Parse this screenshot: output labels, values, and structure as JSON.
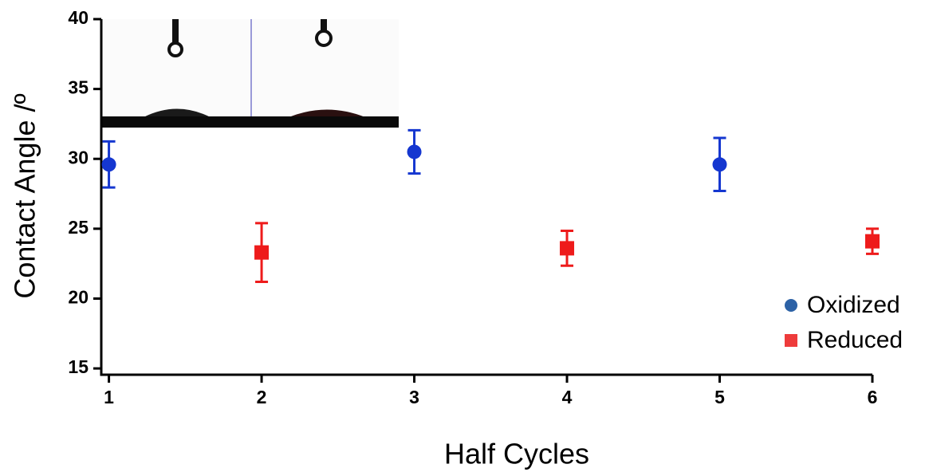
{
  "chart_data": {
    "type": "scatter",
    "x_label": "Half Cycles",
    "y_label": "Contact Angle /º",
    "series": [
      {
        "name": "Oxidized",
        "color": "#1537d0",
        "legend_color": "#2d62a6",
        "marker": "circle",
        "x": [
          1,
          3,
          5
        ],
        "values": [
          29.6,
          30.5,
          29.6
        ],
        "errors": [
          1.65,
          1.55,
          1.9
        ]
      },
      {
        "name": "Reduced",
        "color": "#ee1b1b",
        "legend_color": "#ee3b3b",
        "marker": "square",
        "x": [
          2,
          4,
          6
        ],
        "values": [
          23.3,
          23.6,
          24.1
        ],
        "errors": [
          2.1,
          1.25,
          0.9
        ]
      }
    ],
    "xlim": [
      0.95,
      6.0
    ],
    "xticks": [
      1,
      2,
      3,
      4,
      5,
      6
    ],
    "ylim": [
      14.55,
      40
    ],
    "yticks": [
      15,
      20,
      25,
      30,
      35,
      40
    ],
    "grid": false,
    "legend": "lower right"
  }
}
